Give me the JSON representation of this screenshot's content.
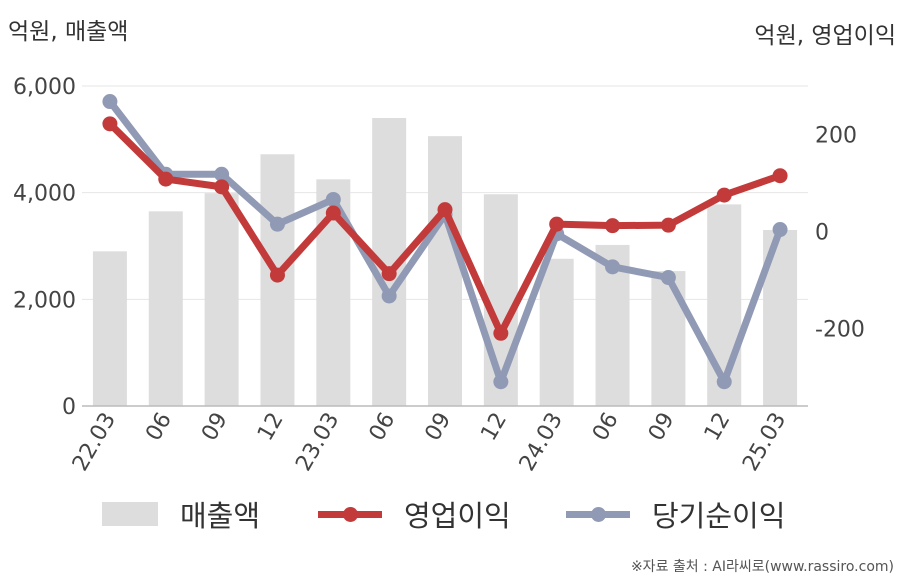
{
  "units": {
    "left": "억원, 매출액",
    "right": "억원, 영업이익"
  },
  "source": "※자료 출처 : AI라씨로(www.rassiro.com)",
  "chart_data": {
    "type": "bar+line",
    "categories": [
      "22.03",
      "06",
      "09",
      "12",
      "23.03",
      "06",
      "09",
      "12",
      "24.03",
      "06",
      "09",
      "12",
      "25.03"
    ],
    "y_left": {
      "ticks": [
        "0",
        "2,000",
        "4,000",
        "6,000"
      ],
      "range": [
        0,
        6000
      ]
    },
    "y_right": {
      "ticks": [
        "-200",
        "0",
        "200"
      ],
      "range": [
        -360,
        300
      ]
    },
    "series": [
      {
        "name": "매출액",
        "type": "bar",
        "axis": "left",
        "color": "#dddddd",
        "values": [
          2900,
          3650,
          3990,
          4720,
          4250,
          5400,
          5060,
          3970,
          2760,
          3020,
          2530,
          3780,
          3300
        ]
      },
      {
        "name": "영업이익",
        "type": "line",
        "axis": "right",
        "color": "#c33a3a",
        "values": [
          222,
          108,
          92,
          -90,
          38,
          -87,
          45,
          -210,
          15,
          12,
          13,
          75,
          115
        ]
      },
      {
        "name": "당기순이익",
        "type": "line",
        "axis": "right",
        "color": "#909ab5",
        "values": [
          268,
          118,
          118,
          15,
          66,
          -133,
          35,
          -310,
          -5,
          -73,
          -95,
          -310,
          4
        ]
      }
    ],
    "legend": "bottom"
  }
}
